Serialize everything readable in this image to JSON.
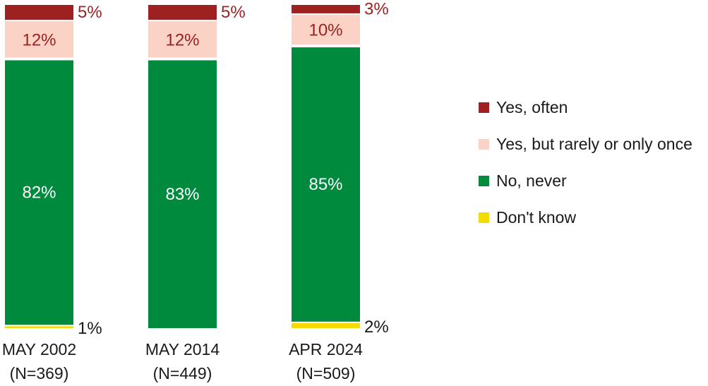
{
  "chart_data": {
    "type": "bar",
    "stacked": true,
    "categories": [
      {
        "label": "MAY 2002",
        "n": "(N=369)"
      },
      {
        "label": "MAY 2014",
        "n": "(N=449)"
      },
      {
        "label": "APR 2024",
        "n": "(N=509)"
      }
    ],
    "series": [
      {
        "name": "Don't know",
        "color": "#f5dc00",
        "values": [
          1,
          0,
          2
        ],
        "labels": [
          "1%",
          "",
          "2%"
        ]
      },
      {
        "name": "No, never",
        "color": "#008a3e",
        "values": [
          82,
          83,
          85
        ],
        "labels": [
          "82%",
          "83%",
          "85%"
        ]
      },
      {
        "name": "Yes, but rarely or only once",
        "color": "#fad3c6",
        "values": [
          12,
          12,
          10
        ],
        "labels": [
          "12%",
          "12%",
          "10%"
        ]
      },
      {
        "name": "Yes, often",
        "color": "#9e2121",
        "values": [
          5,
          5,
          3
        ],
        "labels": [
          "5%",
          "5%",
          "3%"
        ]
      }
    ],
    "legend_order": [
      "Yes, often",
      "Yes, but rarely or only once",
      "No, never",
      "Don't know"
    ],
    "legend_position": "right",
    "grid": false
  }
}
